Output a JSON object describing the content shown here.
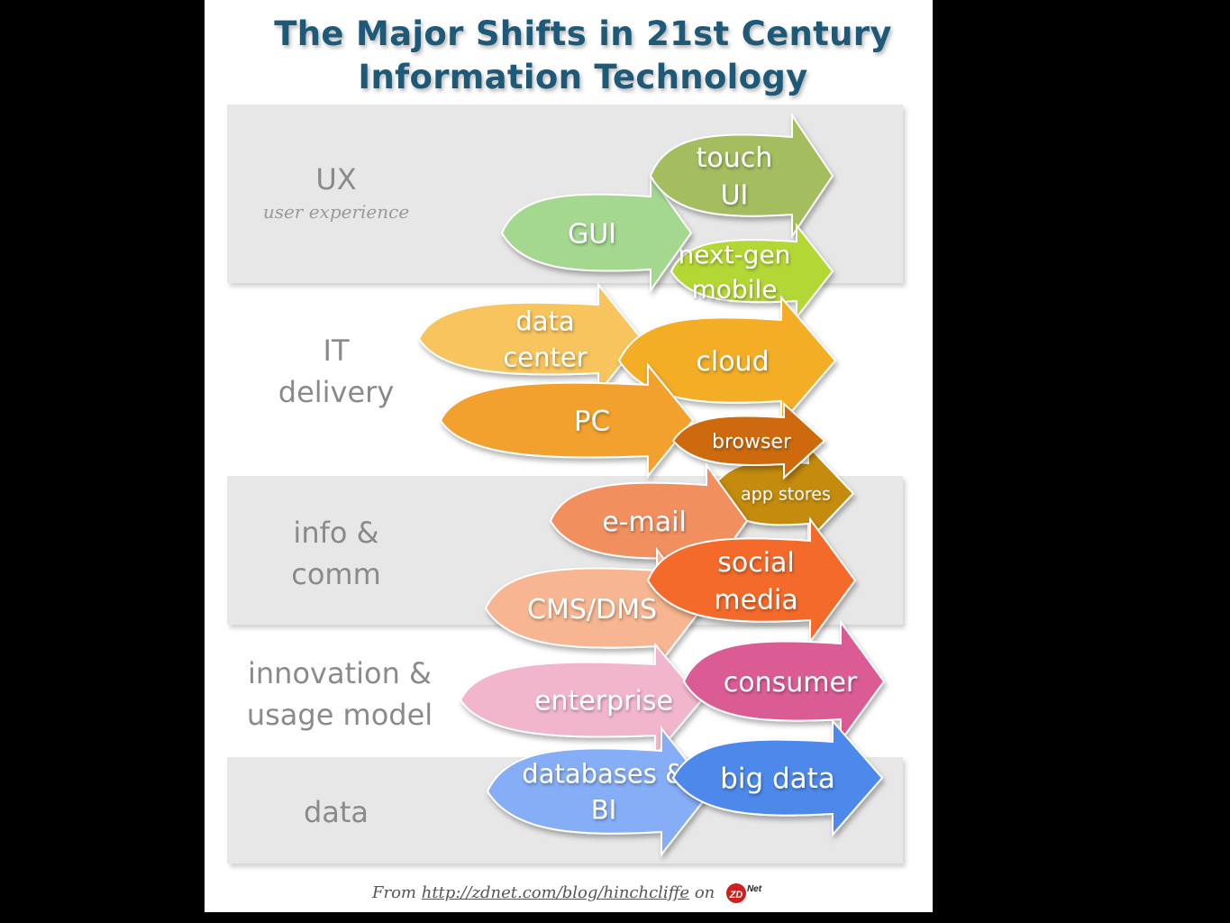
{
  "title_line1": "The Major Shifts in 21st Century",
  "title_line2": "Information Technology",
  "rows": {
    "ux": {
      "label": "UX",
      "sublabel": "user experience"
    },
    "it": {
      "label1": "IT",
      "label2": "delivery"
    },
    "info": {
      "label1": "info &",
      "label2": "comm"
    },
    "innovation": {
      "label1": "innovation &",
      "label2": "usage model"
    },
    "data": {
      "label": "data"
    }
  },
  "arrows": {
    "gui": {
      "label": "GUI",
      "color": "#a5d88f"
    },
    "touch_ui": {
      "line1": "touch",
      "line2": "UI",
      "color": "#a3bd5e"
    },
    "next_gen_mobile": {
      "line1": "next-gen",
      "line2": "mobile",
      "color": "#b3d736"
    },
    "data_center": {
      "line1": "data",
      "line2": "center",
      "color": "#f7c45d"
    },
    "cloud": {
      "label": "cloud",
      "color": "#f3ae25"
    },
    "pc": {
      "label": "PC",
      "color": "#f3a12e"
    },
    "browser": {
      "label": "browser",
      "color": "#cc6a08"
    },
    "app_stores": {
      "label": "app stores",
      "color": "#c48b0c"
    },
    "email": {
      "label": "e-mail",
      "color": "#f28f5f"
    },
    "social_media": {
      "line1": "social",
      "line2": "media",
      "color": "#f46a2a"
    },
    "cms_dms": {
      "label": "CMS/DMS",
      "color": "#f7b691"
    },
    "enterprise": {
      "label": "enterprise",
      "color": "#f2b6cc"
    },
    "consumer": {
      "label": "consumer",
      "color": "#db5b94"
    },
    "databases_bi": {
      "line1": "databases &",
      "line2": "BI",
      "color": "#86aef6"
    },
    "big_data": {
      "label": "big data",
      "color": "#4d89ea"
    }
  },
  "credit": {
    "prefix": "From",
    "link": "http://zdnet.com/blog/hinchcliffe",
    "on": "on",
    "logo_text": "ZD",
    "logo_sup": "Net"
  }
}
